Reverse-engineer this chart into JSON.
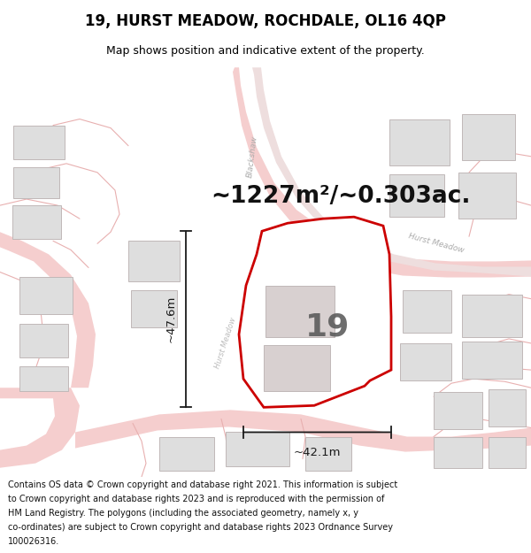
{
  "title": "19, HURST MEADOW, ROCHDALE, OL16 4QP",
  "subtitle": "Map shows position and indicative extent of the property.",
  "area_text": "~1227m²/~0.303ac.",
  "width_text": "~42.1m",
  "height_text": "~47.6m",
  "number_text": "19",
  "footer_text": "Contains OS data © Crown copyright and database right 2021. This information is subject to Crown copyright and database rights 2023 and is reproduced with the permission of HM Land Registry. The polygons (including the associated geometry, namely x, y co-ordinates) are subject to Crown copyright and database rights 2023 Ordnance Survey 100026316.",
  "bg_color": "#ffffff",
  "map_bg": "#ffffff",
  "property_fill": "#ffffff",
  "property_edge": "#cc0000",
  "road_color": "#f5cece",
  "road_edge": "#e8a8a8",
  "building_fill": "#dedede",
  "building_edge": "#c0b8b8",
  "dim_line_color": "#1a1a1a",
  "title_color": "#000000",
  "footer_color": "#111111",
  "text_color": "#111111",
  "road_label_color": "#aaaaaa",
  "map_line_color": "#e8b0b0"
}
